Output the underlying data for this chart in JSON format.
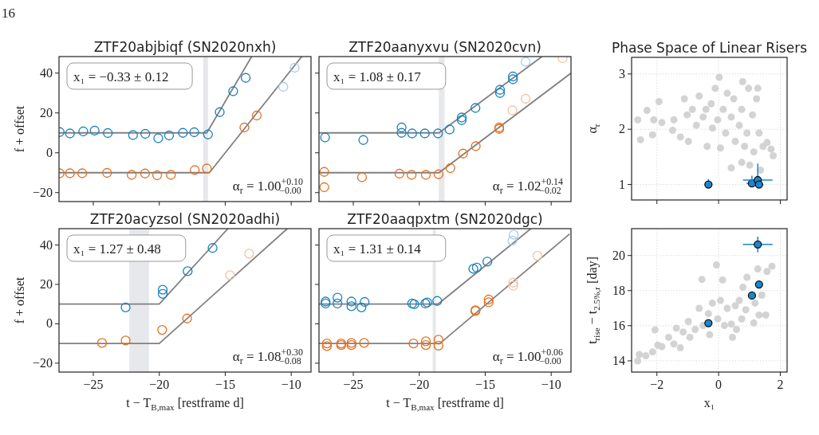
{
  "chart_data": [
    {
      "type": "scatter",
      "title": "ZTF20abjbiqf (SN2020nxh)",
      "ylabel": "f + offset",
      "xlim": [
        -27.6,
        -8.5
      ],
      "ylim": [
        -24.5,
        48.3
      ],
      "xticks": [
        -25,
        -20,
        -15,
        -10
      ],
      "yticks": [
        -20,
        0,
        20,
        40
      ],
      "tick_labels": "y",
      "marker": "circle",
      "bands": [
        {
          "axis": "x",
          "from": -16.67,
          "to": -16.31,
          "color": "#e6e8eb"
        }
      ],
      "annotations": [
        "x₁ = −0.33 ± 0.12",
        "α$_{r}$ = 1.00$^{+0.10}$$_{−0.00}$",
        "16"
      ],
      "series": [
        {
          "type": "line",
          "color": "#808080",
          "marker": "none",
          "x": [
            -27.6,
            -16.4,
            -13.0
          ],
          "values": [
            10,
            10,
            48.3
          ]
        },
        {
          "type": "line",
          "color": "#808080",
          "marker": "none",
          "x": [
            -27.6,
            -16.2,
            -9.2
          ],
          "values": [
            -10,
            -10,
            48.3
          ]
        },
        {
          "color": "#a9cde6",
          "x": [
            -10.6,
            -9.74
          ],
          "values": [
            33.1,
            42.7
          ]
        },
        {
          "color": "#1a80bf",
          "x": [
            -27.55,
            -26.77,
            -25.76,
            -24.9,
            -23.9,
            -21.99,
            -21.06,
            -20.08,
            -19.26,
            -18.21,
            -17.35,
            -16.31,
            -15.42,
            -14.4,
            -13.45
          ],
          "values": [
            10.4,
            9.7,
            10.7,
            11.1,
            9.9,
            8.9,
            9.5,
            7.3,
            8.7,
            10,
            10.3,
            9.2,
            20.4,
            30.9,
            37.6
          ]
        },
        {
          "color": "#e4701e",
          "x": [
            -27.55,
            -26.77,
            -25.84,
            -23.96,
            -22.09,
            -21.08,
            -20.16,
            -19.12,
            -17.31,
            -16.39,
            -13.55,
            -12.61
          ],
          "values": [
            -10.3,
            -10.3,
            -10.3,
            -10.1,
            -11.1,
            -10.4,
            -11.3,
            -11.1,
            -8.7,
            -7.9,
            12.7,
            18.7
          ]
        }
      ]
    },
    {
      "type": "scatter",
      "title": "ZTF20aanyxvu (SN2020cvn)",
      "xlim": [
        -27.6,
        -8.5
      ],
      "ylim": [
        -24.5,
        48.3
      ],
      "xticks": [
        -25,
        -20,
        -15,
        -10
      ],
      "yticks": [
        -20,
        0,
        20,
        40
      ],
      "tick_labels": false,
      "marker": "circle",
      "bands": [
        {
          "axis": "x",
          "from": -18.52,
          "to": -18.08,
          "color": "#e6e8eb"
        }
      ],
      "annotations": [
        "x₁ = 1.08 ± 0.17",
        "α$_{r}$ = 1.02$^{+0.14}$$_{−0.02}$"
      ],
      "series": [
        {
          "type": "line",
          "color": "#808080",
          "marker": "none",
          "x": [
            -27.6,
            -18.5,
            -10.7
          ],
          "values": [
            10,
            10,
            48.3
          ]
        },
        {
          "type": "line",
          "color": "#808080",
          "marker": "none",
          "x": [
            -27.6,
            -18.5,
            -8.5
          ],
          "values": [
            -10,
            -10,
            40
          ]
        },
        {
          "color": "#a9cde6",
          "x": [
            -11.94
          ],
          "values": [
            45.7
          ]
        },
        {
          "color": "#f3c2a0",
          "x": [
            -12.94,
            -11.94,
            -9.14
          ],
          "values": [
            21.3,
            27.1,
            47.5
          ]
        },
        {
          "color": "#1a80bf",
          "x": [
            -27.14,
            -24.24,
            -21.34,
            -21.34,
            -20.54,
            -19.58,
            -18.58,
            -17.7,
            -16.78,
            -16.78,
            -15.74,
            -13.88,
            -13.88,
            -12.9,
            -12.9
          ],
          "values": [
            7.7,
            6.4,
            12.7,
            10,
            9.7,
            9.7,
            9.7,
            11.7,
            17.7,
            16.4,
            22.5,
            31.6,
            30,
            38.3,
            36.9
          ]
        },
        {
          "color": "#e4701e",
          "x": [
            -27.2,
            -27.2,
            -24.34,
            -21.5,
            -20.58,
            -19.5,
            -18.54,
            -17.64,
            -16.68,
            -15.72,
            -13.94,
            -13.94
          ],
          "values": [
            -9.6,
            -17.3,
            -12.3,
            -10.5,
            -11.1,
            -11.1,
            -10.8,
            -7.7,
            -0.4,
            3.3,
            12.7,
            12
          ]
        }
      ]
    },
    {
      "type": "scatter",
      "title": "ZTF20acyzsol (SN2020adhi)",
      "xlabel": "t − T$_{B,max}$ [restframe d]",
      "ylabel": "f + offset",
      "xlim": [
        -27.6,
        -8.5
      ],
      "ylim": [
        -24.5,
        48.3
      ],
      "xticks": [
        -25,
        -20,
        -15,
        -10
      ],
      "yticks": [
        -20,
        0,
        20,
        40
      ],
      "marker": "circle",
      "bands": [
        {
          "axis": "x",
          "from": -22.27,
          "to": -20.78,
          "color": "#e6e8eb"
        }
      ],
      "annotations": [
        "x₁ = 1.27 ± 0.48",
        "α$_{r}$ = 1.08$^{+0.30}$$_{−0.08}$"
      ],
      "series": [
        {
          "type": "line",
          "color": "#808080",
          "marker": "none",
          "x": [
            -27.6,
            -20,
            -14.8
          ],
          "values": [
            10,
            10,
            48.3
          ]
        },
        {
          "type": "line",
          "color": "#808080",
          "marker": "none",
          "x": [
            -27.6,
            -20,
            -10.3
          ],
          "values": [
            -10,
            -10,
            48.3
          ]
        },
        {
          "color": "#f3c2a0",
          "x": [
            -14.64,
            -13.19
          ],
          "values": [
            24.7,
            35.6
          ]
        },
        {
          "color": "#1a80bf",
          "x": [
            -22.55,
            -19.74,
            -19.74,
            -17.85,
            -15.96
          ],
          "values": [
            8.3,
            17.3,
            15.2,
            26.7,
            38.5
          ]
        },
        {
          "color": "#e4701e",
          "x": [
            -24.34,
            -22.55,
            -19.78,
            -17.89
          ],
          "values": [
            -9.7,
            -8.5,
            -3.1,
            2.7
          ]
        }
      ]
    },
    {
      "type": "scatter",
      "title": "ZTF20aaqpxtm (SN2020dgc)",
      "xlabel": "t − T$_{B,max}$ [restframe d]",
      "xlim": [
        -27.6,
        -8.5
      ],
      "ylim": [
        -24.5,
        48.3
      ],
      "xticks": [
        -25,
        -20,
        -15,
        -10
      ],
      "yticks": [
        -20,
        0,
        20,
        40
      ],
      "tick_labels": "x",
      "marker": "circle",
      "bands": [
        {
          "axis": "x",
          "from": -18.98,
          "to": -18.74,
          "color": "#e6e8eb"
        }
      ],
      "annotations": [
        "x₁ = 1.31 ± 0.14",
        "α$_{r}$ = 1.00$^{+0.06}$$_{−0.00}$"
      ],
      "series": [
        {
          "type": "line",
          "color": "#808080",
          "marker": "none",
          "x": [
            -27.6,
            -18.58,
            -11.54
          ],
          "values": [
            10,
            10,
            48.3
          ]
        },
        {
          "type": "line",
          "color": "#808080",
          "marker": "none",
          "x": [
            -27.6,
            -18.44,
            -8.6
          ],
          "values": [
            -10,
            -10,
            45.6
          ]
        },
        {
          "color": "#a9cde6",
          "x": [
            -12.94,
            -12.84
          ],
          "values": [
            42.3,
            45.2
          ]
        },
        {
          "color": "#f3c2a0",
          "x": [
            -12.88,
            -12.88,
            -11.04
          ],
          "values": [
            20.9,
            19.3,
            34.5
          ]
        },
        {
          "color": "#1a80bf",
          "x": [
            -27.1,
            -27.1,
            -26.2,
            -26.2,
            -25.14,
            -25.14,
            -24.38,
            -24.14,
            -20.54,
            -20.38,
            -19.54,
            -19.4,
            -18.64,
            -15.9,
            -15.64,
            -14.84
          ],
          "values": [
            11.3,
            10.3,
            13.3,
            10.3,
            11.3,
            8.9,
            8.3,
            11.1,
            10.3,
            9.9,
            10.3,
            10.8,
            11.6,
            27.9,
            28.5,
            31.6
          ]
        },
        {
          "color": "#e4701e",
          "x": [
            -27,
            -27,
            -25.92,
            -25.92,
            -25.14,
            -25.14,
            -24.18,
            -20.44,
            -19.5,
            -19.5,
            -18.54,
            -18.54,
            -15.74,
            -15.74,
            -14.74,
            -14.74
          ],
          "values": [
            -10,
            -11.3,
            -10,
            -10.8,
            -9.7,
            -10.8,
            -9.7,
            -10,
            -8.9,
            -10.8,
            -8.1,
            -11.1,
            6.9,
            6.5,
            12.3,
            10.9
          ]
        }
      ]
    },
    {
      "type": "scatter",
      "title": "Phase Space of Linear Risers",
      "ylabel": "α$_{r}$",
      "xlim": [
        -2.82,
        2.22
      ],
      "ylim": [
        0.72,
        3.3
      ],
      "xticks": [
        -2,
        0,
        2
      ],
      "yticks": [
        1,
        2,
        3
      ],
      "tick_labels": "y",
      "grid": true,
      "marker": "circle",
      "series": [
        {
          "color": "#d3d3d3",
          "x": [
            -2.62,
            -2.53,
            -2.32,
            -2.14,
            -2.1,
            -1.93,
            -1.84,
            -1.49,
            -1.45,
            -1.24,
            -1.11,
            -1.02,
            -0.98,
            -0.85,
            -0.72,
            -0.63,
            -0.5,
            -0.41,
            -0.37,
            -0.24,
            -0.2,
            -0.11,
            -0.03,
            0.02,
            0.06,
            0.15,
            0.23,
            0.28,
            0.41,
            0.49,
            0.54,
            0.67,
            0.75,
            0.78,
            0.84,
            0.92,
            0.97,
            1.01,
            1.1,
            1.14,
            1.23,
            1.27,
            1.31,
            1.36,
            1.44,
            1.57,
            1.7,
            1.77,
            0.75,
            0.41
          ],
          "values": [
            2.17,
            1.81,
            2.34,
            1.9,
            2.17,
            2.5,
            2.12,
            1.98,
            2.17,
            1.86,
            2.55,
            2.26,
            1.78,
            2.36,
            2.07,
            2.6,
            2.22,
            2.36,
            1.69,
            2.46,
            2.02,
            2.74,
            2.17,
            2.94,
            1.66,
            2.36,
            1.93,
            2.65,
            2.22,
            2.55,
            1.78,
            2.07,
            2.36,
            2.86,
            1.69,
            1.93,
            2.74,
            1.35,
            2.26,
            1.59,
            2.55,
            2.74,
            1.93,
            1.26,
            1.69,
            1.76,
            1.64,
            1.52,
            1.4,
            1.3
          ]
        },
        {
          "color": "#1a86d0",
          "x": [
            -0.33,
            1.08,
            1.27,
            1.31
          ],
          "values": [
            1.0,
            1.02,
            1.08,
            1.0
          ],
          "xerrors": [
            0.12,
            0.17,
            0.48,
            0.14
          ],
          "errors": [
            [
              1.0,
              1.1
            ],
            [
              1.0,
              1.16
            ],
            [
              1.0,
              1.38
            ],
            [
              1.0,
              1.06
            ]
          ]
        }
      ]
    },
    {
      "type": "scatter",
      "xlabel": "x₁",
      "ylabel": "t$_{rise}$ − t$_{2.5%,r}$ [day]",
      "xlim": [
        -2.82,
        2.22
      ],
      "ylim": [
        13.36,
        21.53
      ],
      "xticks": [
        -2,
        0,
        2
      ],
      "yticks": [
        14,
        16,
        18,
        20
      ],
      "grid": true,
      "marker": "circle",
      "series": [
        {
          "color": "#d3d3d3",
          "x": [
            -2.62,
            -2.57,
            -2.36,
            -2.14,
            -2.06,
            -1.97,
            -1.84,
            -1.62,
            -1.45,
            -1.37,
            -1.24,
            -1.15,
            -0.98,
            -0.93,
            -0.76,
            -0.63,
            -0.54,
            -0.5,
            -0.33,
            -0.29,
            -0.2,
            -0.07,
            -0.03,
            0.06,
            0.13,
            0.19,
            0.28,
            0.41,
            0.45,
            0.54,
            0.67,
            0.75,
            0.79,
            0.88,
            0.92,
            1.14,
            1.18,
            1.27,
            1.31,
            1.4,
            1.53,
            1.57,
            1.73,
            0.58
          ],
          "values": [
            13.99,
            14.36,
            14.29,
            14.51,
            15.76,
            14.89,
            14.81,
            15.34,
            14.96,
            15.86,
            14.74,
            15.64,
            16.24,
            15.34,
            15.79,
            16.99,
            18.64,
            16.01,
            16.69,
            15.49,
            17.29,
            19.46,
            16.39,
            17.44,
            18.61,
            16.01,
            16.99,
            16.09,
            15.34,
            17.14,
            17.44,
            16.39,
            18.19,
            16.91,
            18.76,
            16.16,
            17.29,
            19.24,
            16.61,
            17.74,
            16.61,
            19.09,
            19.39,
            15.79
          ]
        },
        {
          "color": "#1a86d0",
          "x": [
            -0.33,
            1.08,
            1.31,
            1.27
          ],
          "values": [
            16.15,
            17.72,
            18.35,
            20.63
          ],
          "xerrors": [
            null,
            null,
            null,
            0.48
          ],
          "errors": [
            null,
            null,
            null,
            0.45
          ]
        }
      ]
    }
  ]
}
